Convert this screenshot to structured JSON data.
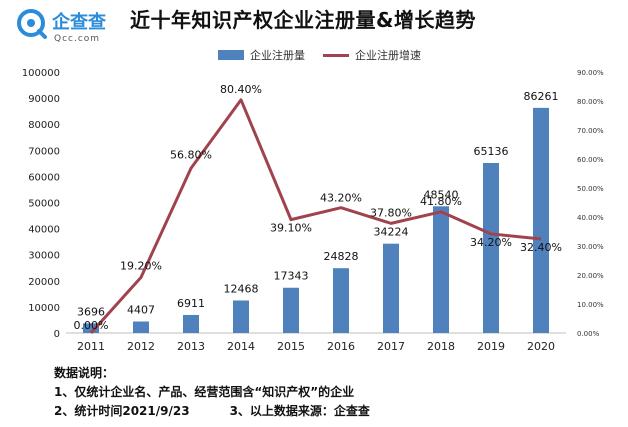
{
  "brand": {
    "name": "企查查",
    "domain": "Qcc.com",
    "color": "#2a8cdb"
  },
  "chart_data": {
    "type": "bar",
    "title": "近十年知识产权企业注册量&增长趋势",
    "categories": [
      "2011",
      "2012",
      "2013",
      "2014",
      "2015",
      "2016",
      "2017",
      "2018",
      "2019",
      "2020"
    ],
    "series": [
      {
        "name": "企业注册量",
        "type": "bar",
        "axis": "left",
        "color": "#4f81bd",
        "values": [
          3696,
          4407,
          6911,
          12468,
          17343,
          24828,
          34224,
          48540,
          65136,
          86261
        ],
        "labels": [
          "3696",
          "4407",
          "6911",
          "12468",
          "17343",
          "24828",
          "34224",
          "48540",
          "65136",
          "86261"
        ]
      },
      {
        "name": "企业注册增速",
        "type": "line",
        "axis": "right",
        "color": "#a0434e",
        "values": [
          0.0,
          19.2,
          56.8,
          80.4,
          39.1,
          43.2,
          37.8,
          41.8,
          34.2,
          32.4
        ],
        "labels": [
          "0.00%",
          "19.20%",
          "56.80%",
          "80.40%",
          "39.10%",
          "43.20%",
          "37.80%",
          "41.80%",
          "34.20%",
          "32.40%"
        ]
      }
    ],
    "y_left": {
      "ylim": [
        0,
        100000
      ],
      "ticks": [
        "0",
        "10000",
        "20000",
        "30000",
        "40000",
        "50000",
        "60000",
        "70000",
        "80000",
        "90000",
        "100000"
      ]
    },
    "y_right": {
      "ylim": [
        0,
        90
      ],
      "ticks": [
        "0.00%",
        "10.00%",
        "20.00%",
        "30.00%",
        "40.00%",
        "50.00%",
        "60.00%",
        "70.00%",
        "80.00%",
        "90.00%"
      ]
    },
    "grid": false,
    "legend_position": "top"
  },
  "notes": {
    "heading": "数据说明：",
    "line1": "1、仅统计企业名、产品、经营范围含“知识产权”的企业",
    "line2a": "2、统计时间2021/9/23",
    "line2b": "3、以上数据来源：企查查"
  }
}
